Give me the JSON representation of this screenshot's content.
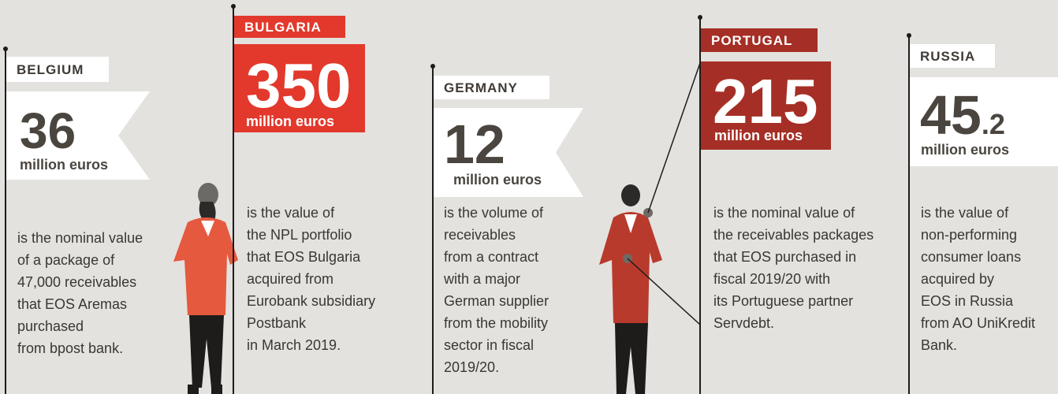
{
  "items": [
    {
      "country": "BELGIUM",
      "value": "36",
      "unit": "million euros",
      "description": [
        "is the nominal value",
        "of a package of",
        "47,000 receivables",
        "that EOS Aremas",
        "purchased",
        "from bpost bank."
      ]
    },
    {
      "country": "BULGARIA",
      "value": "350",
      "unit": "million euros",
      "description": [
        "is the value of",
        "the NPL portfolio",
        "that EOS Bulgaria",
        "acquired from",
        "Eurobank subsidiary",
        "Postbank",
        "in March 2019."
      ]
    },
    {
      "country": "GERMANY",
      "value": "12",
      "unit": "million euros",
      "description": [
        "is the volume of",
        "receivables",
        "from a contract",
        "with a major",
        "German supplier",
        "from the mobility",
        "sector in fiscal",
        "2019/20."
      ]
    },
    {
      "country": "PORTUGAL",
      "value": "215",
      "unit": "million euros",
      "description": [
        "is the nominal value of",
        "the receivables packages",
        "that EOS purchased in",
        "fiscal 2019/20 with",
        "its Portuguese partner",
        "Servdebt."
      ]
    },
    {
      "country": "RUSSIA",
      "value": "45",
      "value_fraction": ".2",
      "unit": "million euros",
      "description": [
        "is the value of",
        "non-performing",
        "consumer loans",
        "acquired by",
        "EOS in Russia",
        "from AO UniKredit",
        "Bank."
      ]
    }
  ]
}
